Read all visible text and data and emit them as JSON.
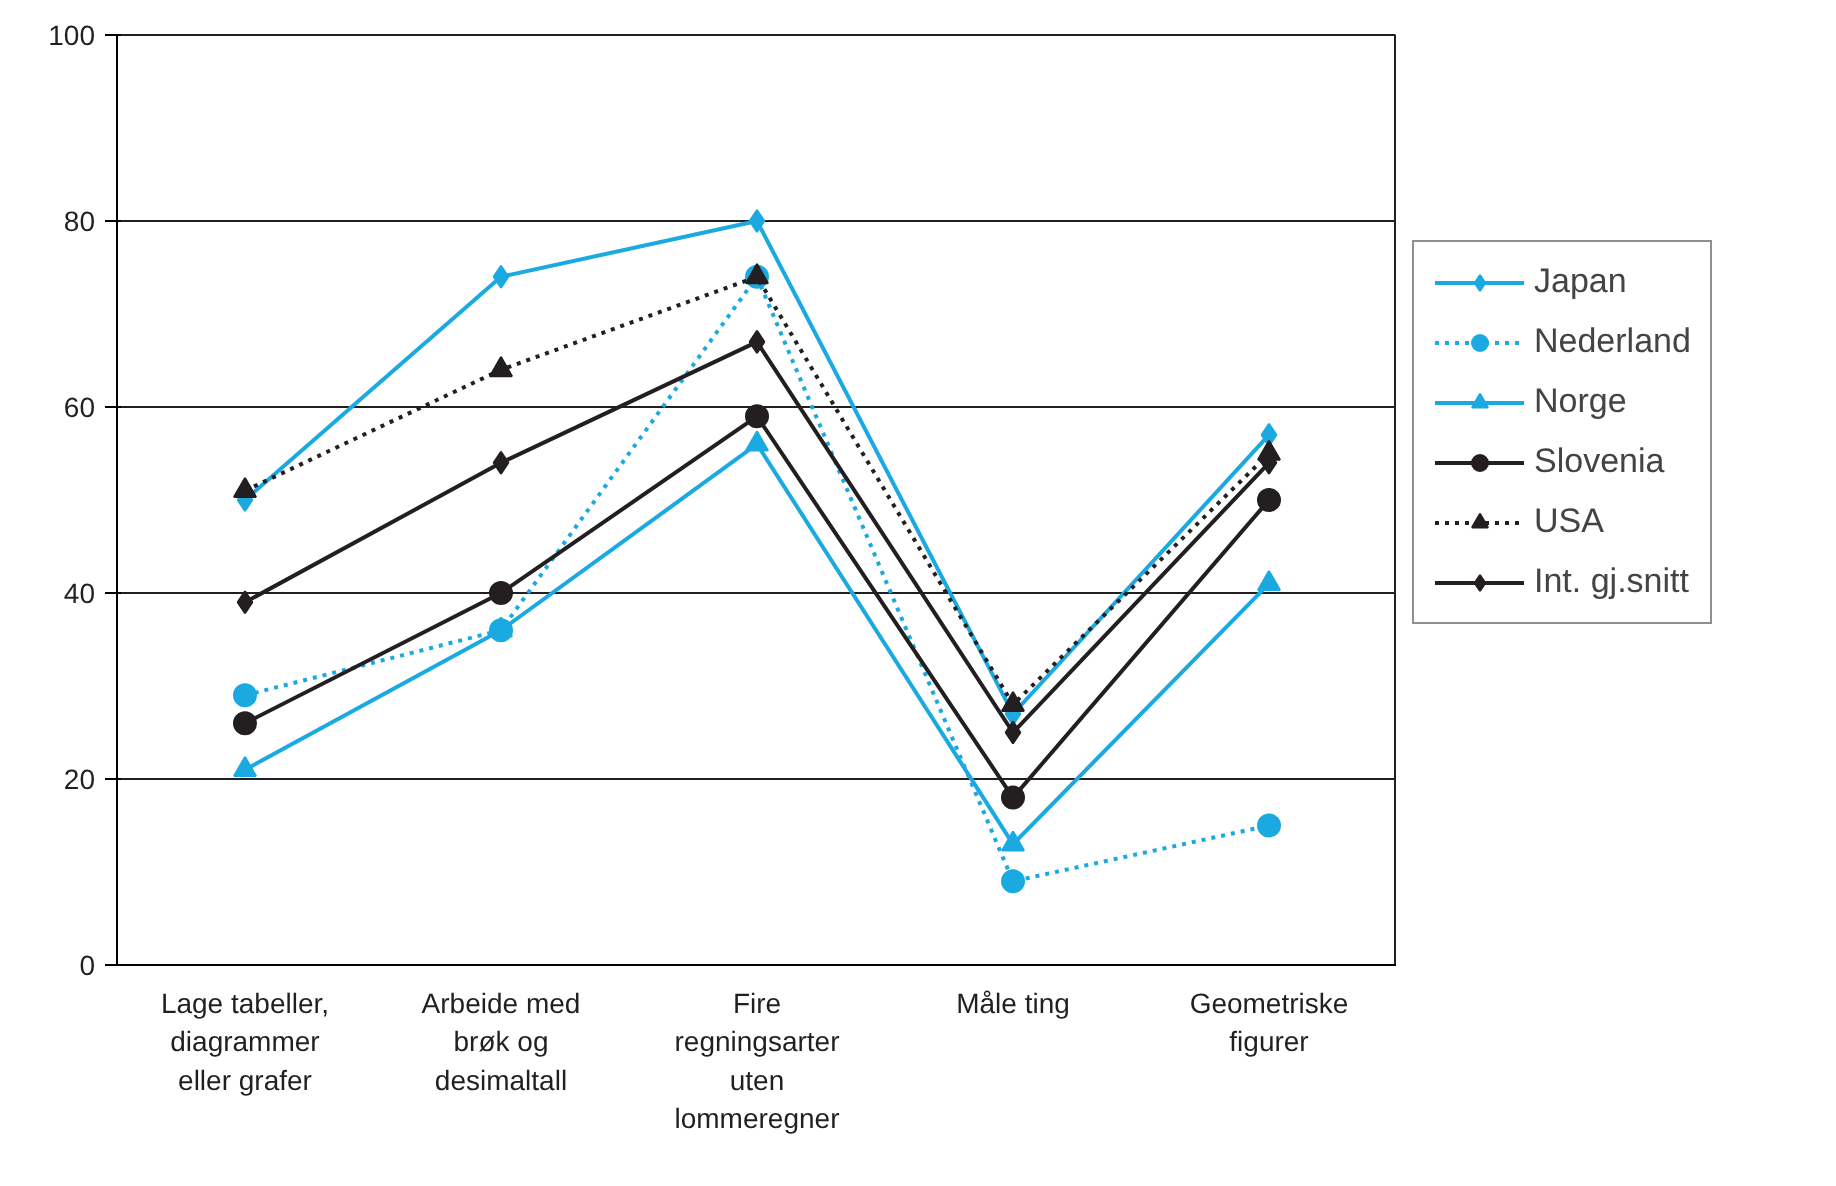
{
  "chart_data": {
    "type": "line",
    "categories": [
      "Lage tabeller,\ndiagrammer\neller grafer",
      "Arbeide med\nbrøk og\ndesimaltall",
      "Fire\nregningsarter\nuten\nlommeregner",
      "Måle ting",
      "Geometriske\nfigurer"
    ],
    "series": [
      {
        "name": "Japan",
        "color": "#1ba9e1",
        "marker": "diamond",
        "line_style": "solid",
        "values": [
          50,
          74,
          80,
          27,
          57
        ]
      },
      {
        "name": "Nederland",
        "color": "#1ba9e1",
        "marker": "circle",
        "line_style": "dotted",
        "values": [
          29,
          36,
          74,
          9,
          15
        ]
      },
      {
        "name": "Norge",
        "color": "#1ba9e1",
        "marker": "triangle",
        "line_style": "solid",
        "values": [
          21,
          36,
          56,
          13,
          41
        ]
      },
      {
        "name": "Slovenia",
        "color": "#231f20",
        "marker": "circle",
        "line_style": "solid",
        "values": [
          26,
          40,
          59,
          18,
          50
        ]
      },
      {
        "name": "USA",
        "color": "#231f20",
        "marker": "triangle",
        "line_style": "dotted",
        "values": [
          51,
          64,
          74,
          28,
          55
        ]
      },
      {
        "name": "Int. gj.snitt",
        "color": "#231f20",
        "marker": "diamond",
        "line_style": "solid",
        "values": [
          39,
          54,
          67,
          25,
          54
        ]
      }
    ],
    "ylim": [
      0,
      100
    ],
    "yticks": [
      0,
      20,
      40,
      60,
      80,
      100
    ],
    "grid": "y",
    "legend": "right"
  }
}
